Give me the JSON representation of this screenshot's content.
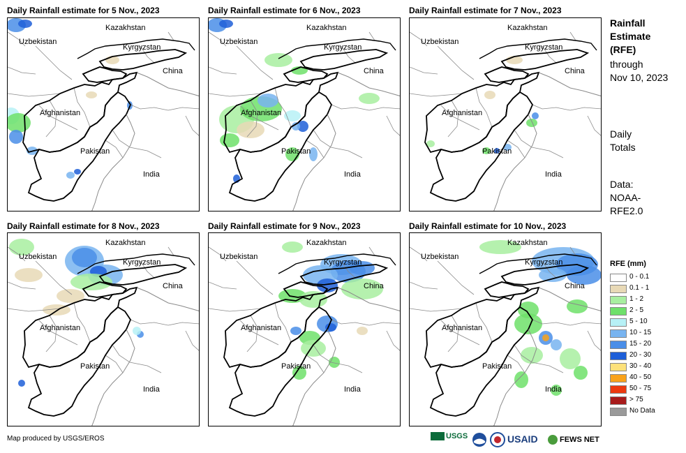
{
  "panels": [
    {
      "title": "Daily Rainfall estimate for 5 Nov., 2023"
    },
    {
      "title": "Daily Rainfall estimate for 6 Nov., 2023"
    },
    {
      "title": "Daily Rainfall estimate for 7 Nov., 2023"
    },
    {
      "title": "Daily Rainfall estimate for 8 Nov., 2023"
    },
    {
      "title": "Daily Rainfall estimate for 9 Nov., 2023"
    },
    {
      "title": "Daily Rainfall estimate for 10 Nov., 2023"
    }
  ],
  "labels": {
    "kazakhstan": "Kazakhstan",
    "uzbekistan": "Uzbekistan",
    "kyrgyzstan": "Kyrgyzstan",
    "china": "China",
    "afghanistan": "Afghanistan",
    "pakistan": "Pakistan",
    "india": "India"
  },
  "side": {
    "title_lines": [
      "Rainfall",
      "Estimate",
      "(RFE)"
    ],
    "through_lines": [
      "through",
      "Nov 10, 2023"
    ],
    "totals_lines": [
      "Daily",
      "Totals"
    ],
    "data_lines": [
      "Data:",
      "NOAA-",
      "RFE2.0"
    ]
  },
  "legend": {
    "title": "RFE (mm)",
    "items": [
      {
        "label": "0 - 0.1",
        "color": "#ffffff"
      },
      {
        "label": "0.1 - 1",
        "color": "#e8d9b6"
      },
      {
        "label": "1 - 2",
        "color": "#a8eea0"
      },
      {
        "label": "2 - 5",
        "color": "#6ee06a"
      },
      {
        "label": "5 - 10",
        "color": "#b7f1f6"
      },
      {
        "label": "10 - 15",
        "color": "#78b4f0"
      },
      {
        "label": "15 - 20",
        "color": "#4a8ee8"
      },
      {
        "label": "20 - 30",
        "color": "#1e5fd8"
      },
      {
        "label": "30 - 40",
        "color": "#fde17a"
      },
      {
        "label": "40 - 50",
        "color": "#f9a21b"
      },
      {
        "label": "50 - 75",
        "color": "#ec3a10"
      },
      {
        "label": "> 75",
        "color": "#a81c1c"
      },
      {
        "label": "No Data",
        "color": "#9a9a9a"
      }
    ]
  },
  "footer": {
    "credit": "Map produced by USGS/EROS",
    "logos": [
      "USGS",
      "USAID",
      "FEWS NET"
    ]
  }
}
